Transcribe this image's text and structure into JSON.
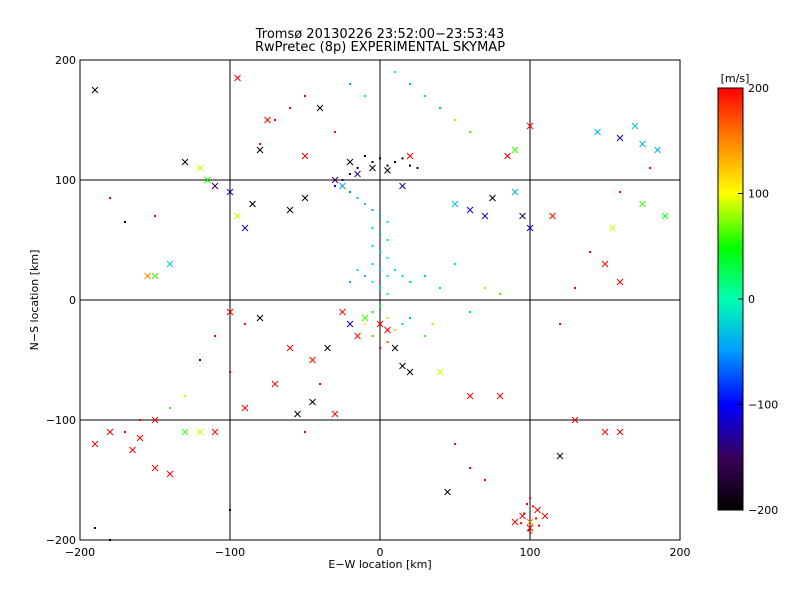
{
  "chart_data": {
    "type": "scatter",
    "title": "Tromsø 20130226 23:52:00−23:53:43",
    "subtitle": "RwPretec (8p) EXPERIMENTAL SKYMAP",
    "xlabel": "E−W location [km]",
    "ylabel": "N−S location [km]",
    "xlim": [
      -200,
      200
    ],
    "ylim": [
      -200,
      200
    ],
    "xticks": [
      "−200",
      "−100",
      "0",
      "100",
      "200"
    ],
    "yticks": [
      "−200",
      "−100",
      "0",
      "100",
      "200"
    ],
    "grid": true,
    "colorbar": {
      "label": "[m/s]",
      "range": [
        -200,
        200
      ],
      "ticks": [
        "200",
        "100",
        "0",
        "−100",
        "−200"
      ],
      "colormap": "rainbow (black → purple → blue → cyan → green → yellow → red)"
    },
    "series": [
      {
        "marker": "cross",
        "points": [
          [
            -190,
            175,
            -200
          ],
          [
            -130,
            115,
            -200
          ],
          [
            -95,
            185,
            200
          ],
          [
            -110,
            95,
            -160
          ],
          [
            -80,
            125,
            -200
          ],
          [
            -75,
            150,
            200
          ],
          [
            -50,
            120,
            200
          ],
          [
            -40,
            160,
            -200
          ],
          [
            -20,
            115,
            -200
          ],
          [
            -15,
            105,
            -140
          ],
          [
            -5,
            110,
            -200
          ],
          [
            5,
            108,
            -200
          ],
          [
            15,
            95,
            -130
          ],
          [
            -25,
            95,
            -50
          ],
          [
            20,
            120,
            200
          ],
          [
            75,
            85,
            -200
          ],
          [
            85,
            120,
            200
          ],
          [
            90,
            125,
            60
          ],
          [
            100,
            145,
            200
          ],
          [
            115,
            70,
            200
          ],
          [
            145,
            140,
            -40
          ],
          [
            160,
            135,
            -120
          ],
          [
            170,
            145,
            -30
          ],
          [
            175,
            130,
            -40
          ],
          [
            185,
            125,
            -40
          ],
          [
            190,
            70,
            50
          ],
          [
            175,
            80,
            60
          ],
          [
            155,
            60,
            90
          ],
          [
            160,
            15,
            200
          ],
          [
            150,
            30,
            200
          ],
          [
            100,
            60,
            -120
          ],
          [
            95,
            70,
            -160
          ],
          [
            90,
            90,
            -40
          ],
          [
            70,
            70,
            -120
          ],
          [
            60,
            75,
            -110
          ],
          [
            50,
            80,
            -30
          ],
          [
            -155,
            20,
            150
          ],
          [
            -150,
            20,
            60
          ],
          [
            -140,
            30,
            -30
          ],
          [
            -120,
            110,
            90
          ],
          [
            -115,
            100,
            50
          ],
          [
            -100,
            90,
            -110
          ],
          [
            -95,
            70,
            90
          ],
          [
            -90,
            60,
            -120
          ],
          [
            -85,
            80,
            -200
          ],
          [
            -60,
            75,
            -200
          ],
          [
            -50,
            85,
            -200
          ],
          [
            -30,
            100,
            -150
          ],
          [
            -100,
            -10,
            200
          ],
          [
            -80,
            -15,
            -200
          ],
          [
            -60,
            -40,
            200
          ],
          [
            -45,
            -50,
            200
          ],
          [
            -35,
            -40,
            -200
          ],
          [
            -25,
            -10,
            200
          ],
          [
            -20,
            -20,
            -120
          ],
          [
            -15,
            -30,
            200
          ],
          [
            -10,
            -15,
            60
          ],
          [
            0,
            -20,
            200
          ],
          [
            5,
            -25,
            200
          ],
          [
            10,
            -40,
            -200
          ],
          [
            15,
            -55,
            -200
          ],
          [
            20,
            -60,
            -200
          ],
          [
            -30,
            -95,
            200
          ],
          [
            -45,
            -85,
            -200
          ],
          [
            -55,
            -95,
            -200
          ],
          [
            -70,
            -70,
            200
          ],
          [
            -90,
            -90,
            200
          ],
          [
            -110,
            -110,
            200
          ],
          [
            -120,
            -110,
            90
          ],
          [
            -130,
            -110,
            60
          ],
          [
            -140,
            -145,
            200
          ],
          [
            -150,
            -140,
            200
          ],
          [
            -165,
            -125,
            200
          ],
          [
            -180,
            -110,
            200
          ],
          [
            -190,
            -120,
            200
          ],
          [
            -150,
            -100,
            200
          ],
          [
            -160,
            -115,
            200
          ],
          [
            40,
            -60,
            90
          ],
          [
            45,
            -160,
            -200
          ],
          [
            60,
            -80,
            200
          ],
          [
            80,
            -80,
            200
          ],
          [
            120,
            -130,
            -200
          ],
          [
            130,
            -100,
            200
          ],
          [
            150,
            -110,
            200
          ],
          [
            160,
            -110,
            200
          ],
          [
            95,
            -180,
            200
          ],
          [
            100,
            -185,
            150
          ],
          [
            105,
            -175,
            200
          ],
          [
            90,
            -185,
            200
          ],
          [
            100,
            -190,
            200
          ],
          [
            110,
            -180,
            200
          ]
        ]
      },
      {
        "marker": "dot",
        "points": [
          [
            -10,
            120,
            -200
          ],
          [
            -5,
            115,
            -200
          ],
          [
            0,
            118,
            -200
          ],
          [
            5,
            112,
            -200
          ],
          [
            10,
            115,
            -200
          ],
          [
            15,
            118,
            -200
          ],
          [
            20,
            112,
            -200
          ],
          [
            25,
            110,
            -200
          ],
          [
            -15,
            110,
            -200
          ],
          [
            -20,
            105,
            -180
          ],
          [
            -25,
            100,
            -150
          ],
          [
            -30,
            95,
            -100
          ],
          [
            -20,
            90,
            -60
          ],
          [
            -15,
            85,
            -30
          ],
          [
            -10,
            80,
            -20
          ],
          [
            -5,
            75,
            -40
          ],
          [
            0,
            70,
            -30
          ],
          [
            5,
            65,
            -10
          ],
          [
            -5,
            60,
            -20
          ],
          [
            0,
            55,
            -40
          ],
          [
            5,
            50,
            -20
          ],
          [
            -5,
            45,
            -30
          ],
          [
            0,
            40,
            -10
          ],
          [
            5,
            35,
            0
          ],
          [
            -5,
            30,
            -20
          ],
          [
            0,
            25,
            -30
          ],
          [
            5,
            20,
            -10
          ],
          [
            -5,
            15,
            0
          ],
          [
            0,
            10,
            -20
          ],
          [
            5,
            5,
            10
          ],
          [
            -10,
            20,
            -30
          ],
          [
            -15,
            25,
            -20
          ],
          [
            10,
            25,
            -10
          ],
          [
            15,
            20,
            0
          ],
          [
            -20,
            15,
            -40
          ],
          [
            20,
            15,
            20
          ],
          [
            0,
            -5,
            20
          ],
          [
            -5,
            -10,
            50
          ],
          [
            5,
            -15,
            80
          ],
          [
            -10,
            -20,
            100
          ],
          [
            10,
            -25,
            120
          ],
          [
            -5,
            -30,
            150
          ],
          [
            5,
            -35,
            170
          ],
          [
            0,
            -40,
            200
          ],
          [
            15,
            -20,
            -20
          ],
          [
            20,
            -15,
            -30
          ],
          [
            30,
            -30,
            60
          ],
          [
            35,
            -20,
            80
          ],
          [
            40,
            160,
            -40
          ],
          [
            30,
            170,
            -20
          ],
          [
            20,
            180,
            -30
          ],
          [
            10,
            190,
            0
          ],
          [
            -10,
            170,
            20
          ],
          [
            -20,
            180,
            -40
          ],
          [
            50,
            150,
            80
          ],
          [
            60,
            140,
            60
          ],
          [
            -60,
            160,
            200
          ],
          [
            -50,
            170,
            200
          ],
          [
            -70,
            150,
            200
          ],
          [
            -80,
            130,
            200
          ],
          [
            -30,
            140,
            200
          ],
          [
            100,
            -165,
            200
          ],
          [
            98,
            -170,
            200
          ],
          [
            102,
            -172,
            200
          ],
          [
            96,
            -178,
            200
          ],
          [
            104,
            -182,
            200
          ],
          [
            94,
            -186,
            200
          ],
          [
            106,
            -188,
            200
          ],
          [
            99,
            -192,
            200
          ],
          [
            101,
            -194,
            150
          ],
          [
            50,
            -120,
            200
          ],
          [
            60,
            -140,
            200
          ],
          [
            70,
            -150,
            200
          ],
          [
            -120,
            -50,
            -200
          ],
          [
            -110,
            -30,
            200
          ],
          [
            -100,
            -60,
            200
          ],
          [
            -90,
            -20,
            200
          ],
          [
            -130,
            -80,
            90
          ],
          [
            -140,
            -90,
            60
          ],
          [
            -160,
            -100,
            200
          ],
          [
            -170,
            -110,
            200
          ],
          [
            -190,
            -190,
            -200
          ],
          [
            -180,
            -200,
            -200
          ],
          [
            -100,
            -175,
            -200
          ],
          [
            -170,
            65,
            -200
          ],
          [
            -180,
            85,
            200
          ],
          [
            -150,
            70,
            200
          ],
          [
            120,
            -20,
            200
          ],
          [
            130,
            10,
            200
          ],
          [
            140,
            40,
            200
          ],
          [
            160,
            90,
            200
          ],
          [
            180,
            110,
            200
          ],
          [
            70,
            10,
            80
          ],
          [
            80,
            5,
            60
          ],
          [
            60,
            -10,
            40
          ],
          [
            40,
            10,
            -20
          ],
          [
            30,
            20,
            -30
          ],
          [
            50,
            30,
            -10
          ],
          [
            -40,
            -70,
            200
          ],
          [
            -50,
            -110,
            200
          ]
        ]
      }
    ]
  }
}
